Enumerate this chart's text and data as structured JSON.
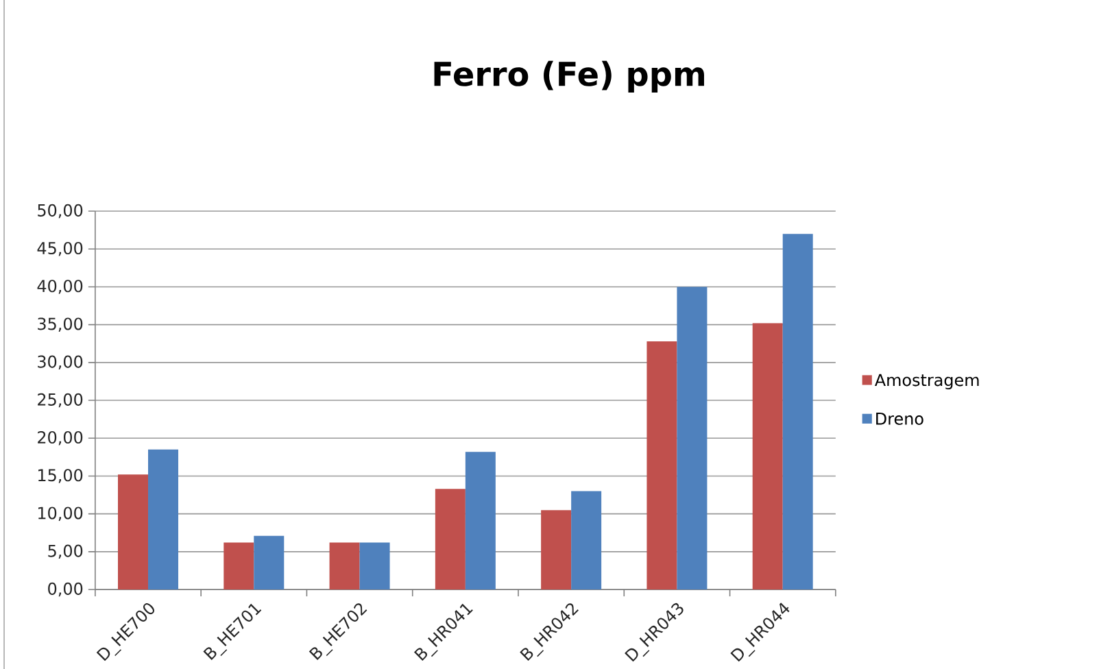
{
  "chart_data": {
    "type": "bar",
    "title": "Ferro (Fe) ppm",
    "categories": [
      "D_HE700",
      "B_HE701",
      "B_HE702",
      "B_HR041",
      "B_HR042",
      "D_HR043",
      "D_HR044"
    ],
    "series": [
      {
        "name": "Amostragem",
        "color": "#c0504d",
        "values": [
          15.2,
          6.2,
          6.2,
          13.3,
          10.5,
          32.8,
          35.2
        ]
      },
      {
        "name": "Dreno",
        "color": "#4f81bd",
        "values": [
          18.5,
          7.1,
          6.2,
          18.2,
          13.0,
          40.0,
          47.0
        ]
      }
    ],
    "ylim": [
      0,
      50
    ],
    "yticks": [
      {
        "value": 0,
        "label": "0,00"
      },
      {
        "value": 5,
        "label": "5,00"
      },
      {
        "value": 10,
        "label": "10,00"
      },
      {
        "value": 15,
        "label": "15,00"
      },
      {
        "value": 20,
        "label": "20,00"
      },
      {
        "value": 25,
        "label": "25,00"
      },
      {
        "value": 30,
        "label": "30,00"
      },
      {
        "value": 35,
        "label": "35,00"
      },
      {
        "value": 40,
        "label": "40,00"
      },
      {
        "value": 45,
        "label": "45,00"
      },
      {
        "value": 50,
        "label": "50,00"
      }
    ],
    "grid": "y",
    "legend": "right"
  }
}
